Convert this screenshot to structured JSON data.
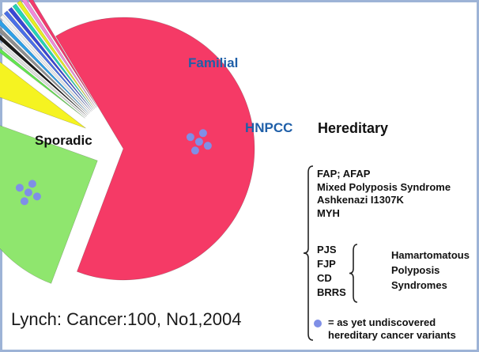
{
  "chart_data": {
    "type": "pie",
    "slices": [
      {
        "label": "Sporadic",
        "value": 65,
        "color": "#f53a66",
        "marked_undiscovered": true
      },
      {
        "label": "Familial",
        "value": 25,
        "color": "#8fe66e",
        "marked_undiscovered": true
      },
      {
        "label": "HNPCC",
        "value": 5,
        "color": "#f5f321"
      },
      {
        "label": "FAP; AFAP",
        "value": 0.5,
        "color": "#63e64f"
      },
      {
        "label": "Mixed Polyposis Syndrome",
        "value": 0.5,
        "color": "#e3e3e3"
      },
      {
        "label": "Ashkenazi I1307K",
        "value": 0.5,
        "color": "#1a1a1a"
      },
      {
        "label": "MYH",
        "value": 0.5,
        "color": "#8f8f8f"
      },
      {
        "label": "PJS",
        "value": 0.5,
        "color": "#2ea0e8"
      },
      {
        "label": "FJP",
        "value": 0.5,
        "color": "#f2f2f2"
      },
      {
        "label": "CD",
        "value": 0.5,
        "color": "#4a6fe8"
      },
      {
        "label": "BRRS",
        "value": 0.5,
        "color": "#3a46d6"
      },
      {
        "label": "",
        "value": 0.5,
        "color": "#24d6b8"
      },
      {
        "label": "",
        "value": 0.5,
        "color": "#e8f020"
      },
      {
        "label": "",
        "value": 0.5,
        "color": "#f28ad8"
      },
      {
        "label": "",
        "value": 0.5,
        "color": "#f23a6e"
      }
    ],
    "labels": {
      "familial": "Familial",
      "hnpcc": "HNPCC",
      "sporadic": "Sporadic",
      "hereditary": "Hereditary"
    },
    "hereditary_list": [
      "FAP; AFAP",
      "Mixed Polyposis Syndrome",
      "Ashkenazi I1307K",
      "MYH"
    ],
    "hamartomatous_list": [
      "PJS",
      "FJP",
      "CD",
      "BRRS"
    ],
    "hamartomatous_label": [
      "Hamartomatous",
      "Polyposis",
      "Syndromes"
    ],
    "legend_note": [
      "= as yet undiscovered",
      "hereditary cancer variants"
    ],
    "citation": "Lynch: Cancer:100, No1,2004"
  },
  "colors": {
    "dot": "#7f8fe6",
    "frame": "#9db3d6",
    "familial_label": "#1f5fa8",
    "hnpcc_label": "#1f5fa8"
  }
}
